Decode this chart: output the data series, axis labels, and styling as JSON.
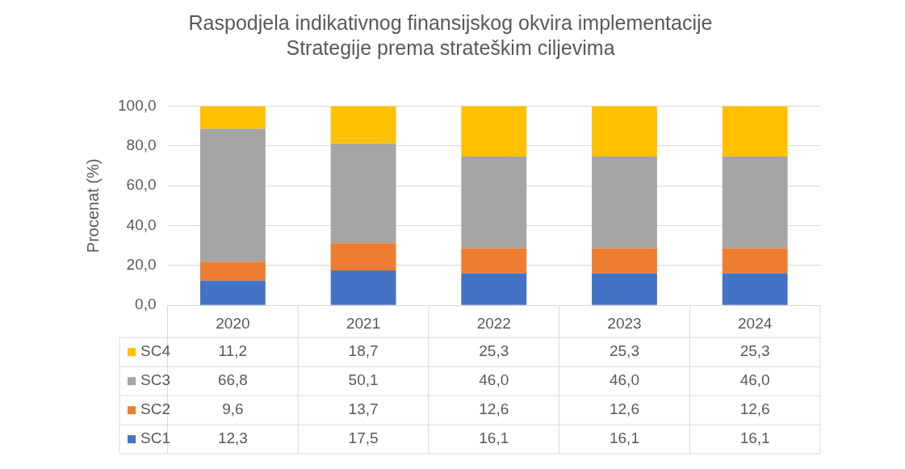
{
  "chart_data": {
    "type": "bar",
    "title": "Raspodjela indikativnog finansijskog okvira implementacije\nStrategije prema strateškim ciljevima",
    "ylabel": "Procenat (%)",
    "categories": [
      "2020",
      "2021",
      "2022",
      "2023",
      "2024"
    ],
    "stacked": true,
    "ylim": [
      0,
      100
    ],
    "yticks": [
      {
        "value": 0,
        "label": "0,0"
      },
      {
        "value": 20,
        "label": "20,0"
      },
      {
        "value": 40,
        "label": "40,0"
      },
      {
        "value": 60,
        "label": "60,0"
      },
      {
        "value": 80,
        "label": "80,0"
      },
      {
        "value": 100,
        "label": "100,0"
      }
    ],
    "grid": "y",
    "legend": "bottom",
    "series": [
      {
        "name": "SC1",
        "color": "#4472c4",
        "values": [
          12.3,
          17.5,
          16.1,
          16.1,
          16.1
        ],
        "value_labels": [
          "12,3",
          "17,5",
          "16,1",
          "16,1",
          "16,1"
        ]
      },
      {
        "name": "SC2",
        "color": "#ed7d31",
        "values": [
          9.6,
          13.7,
          12.6,
          12.6,
          12.6
        ],
        "value_labels": [
          "9,6",
          "13,7",
          "12,6",
          "12,6",
          "12,6"
        ]
      },
      {
        "name": "SC3",
        "color": "#a5a5a5",
        "values": [
          66.8,
          50.1,
          46.0,
          46.0,
          46.0
        ],
        "value_labels": [
          "66,8",
          "50,1",
          "46,0",
          "46,0",
          "46,0"
        ]
      },
      {
        "name": "SC4",
        "color": "#ffc000",
        "values": [
          11.2,
          18.7,
          25.3,
          25.3,
          25.3
        ],
        "value_labels": [
          "11,2",
          "18,7",
          "25,3",
          "25,3",
          "25,3"
        ]
      }
    ]
  }
}
